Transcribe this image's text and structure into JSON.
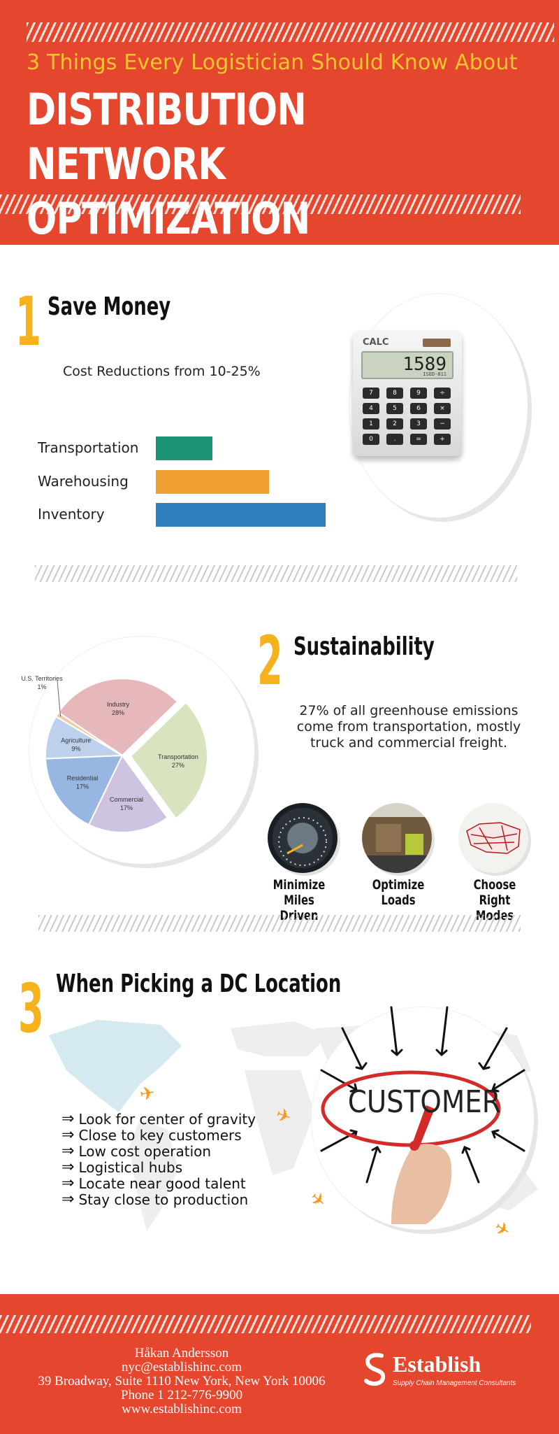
{
  "header": {
    "subtitle": "3 Things Every Logistician Should Know About",
    "title_line1": "DISTRIBUTION NETWORK",
    "title_line2": "OPTIMIZATION"
  },
  "section1": {
    "number": "1",
    "heading": "Save Money",
    "caption": "Cost Reductions from 10-25%",
    "calculator": {
      "brand": "CALC",
      "display": "1589",
      "sub": "ISED-811"
    },
    "chart_data": {
      "type": "bar",
      "orientation": "horizontal",
      "categories": [
        "Transportation",
        "Warehousing",
        "Inventory"
      ],
      "values": [
        1,
        2,
        3
      ],
      "colors": [
        "#1a9474",
        "#f0a030",
        "#2f7fbf"
      ]
    }
  },
  "section2": {
    "number": "2",
    "heading": "Sustainability",
    "text": "27% of all greenhouse emissions come from transportation, mostly truck and commercial freight.",
    "chart_data": {
      "type": "pie",
      "slices": [
        {
          "label": "Industry",
          "value": 28,
          "pct": "28%",
          "color": "#e6b8bc"
        },
        {
          "label": "Transportation",
          "value": 27,
          "pct": "27%",
          "color": "#d8e4c0"
        },
        {
          "label": "Commercial",
          "value": 17,
          "pct": "17%",
          "color": "#cfc3e2"
        },
        {
          "label": "Residential",
          "value": 17,
          "pct": "17%",
          "color": "#98b6e2"
        },
        {
          "label": "Agriculture",
          "value": 9,
          "pct": "9%",
          "color": "#bdd1ec"
        },
        {
          "label": "U.S. Territories",
          "value": 1,
          "pct": "1%",
          "color": "#f2c9a2"
        }
      ]
    },
    "icons": [
      {
        "name": "speedometer-icon",
        "label_line1": "Minimize Miles",
        "label_line2": "Driven"
      },
      {
        "name": "truck-loading-icon",
        "label_line1": "Optimize",
        "label_line2": "Loads"
      },
      {
        "name": "us-map-icon",
        "label_line1": "Choose Right",
        "label_line2": "Modes"
      }
    ]
  },
  "section3": {
    "number": "3",
    "heading": "When Picking a DC Location",
    "customer_word": "CUSTOMER",
    "items": [
      "Look for center of gravity",
      "Close to key customers",
      "Low cost operation",
      "Logistical hubs",
      "Locate near good talent",
      "Stay close to production"
    ]
  },
  "footer": {
    "name": "Håkan Andersson",
    "email": "nyc@establishinc.com",
    "address": "39 Broadway, Suite 1110 New York, New York 10006",
    "phone": "Phone 1 212-776-9900",
    "website": "www.establishinc.com",
    "brand": "Establish",
    "tagline": "Supply Chain Management Consultants"
  },
  "colors": {
    "accent": "#e4472e",
    "number_yellow": "#f5b21c",
    "subtitle_yellow": "#f7c62f"
  }
}
